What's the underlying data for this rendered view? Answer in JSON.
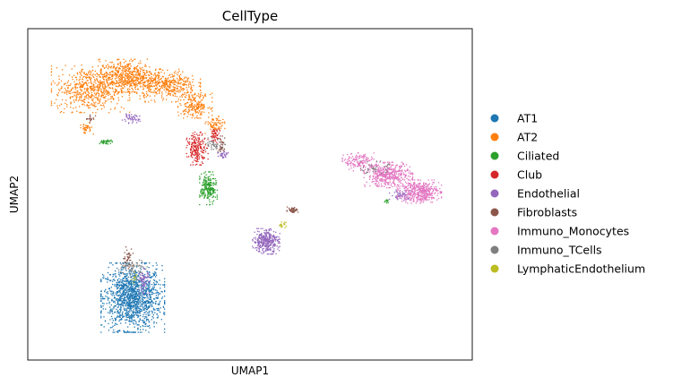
{
  "chart_data": {
    "type": "scatter",
    "title": "CellType",
    "xlabel": "UMAP1",
    "ylabel": "UMAP2",
    "grid": false,
    "ticks": false,
    "legend_position": "right",
    "xlim": [
      0,
      100
    ],
    "ylim": [
      0,
      100
    ],
    "series": [
      {
        "name": "AT1",
        "color": "#1f77b4",
        "clusters": [
          {
            "cx": 23.5,
            "cy": 19,
            "rx": 6.5,
            "ry": 9.5,
            "n": 1400
          }
        ]
      },
      {
        "name": "AT2",
        "color": "#ff7f0e",
        "clusters": [
          {
            "cx": 14,
            "cy": 82,
            "rx": 8,
            "ry": 6.5,
            "n": 600
          },
          {
            "cx": 22,
            "cy": 86,
            "rx": 6,
            "ry": 4.5,
            "n": 500
          },
          {
            "cx": 31,
            "cy": 83,
            "rx": 7,
            "ry": 4.5,
            "n": 450
          },
          {
            "cx": 37.5,
            "cy": 77,
            "rx": 3.5,
            "ry": 3.5,
            "n": 200
          },
          {
            "cx": 42,
            "cy": 71,
            "rx": 2,
            "ry": 2.5,
            "n": 80
          },
          {
            "cx": 13,
            "cy": 70,
            "rx": 1.5,
            "ry": 1.5,
            "n": 40
          }
        ]
      },
      {
        "name": "Ciliated",
        "color": "#2ca02c",
        "clusters": [
          {
            "cx": 40.5,
            "cy": 52,
            "rx": 1.8,
            "ry": 4.5,
            "n": 220
          },
          {
            "cx": 17.5,
            "cy": 66,
            "rx": 1.5,
            "ry": 0.6,
            "n": 40
          },
          {
            "cx": 80.5,
            "cy": 48,
            "rx": 0.5,
            "ry": 0.7,
            "n": 10
          }
        ]
      },
      {
        "name": "Club",
        "color": "#d62728",
        "clusters": [
          {
            "cx": 38,
            "cy": 64,
            "rx": 2.2,
            "ry": 4.5,
            "n": 200
          },
          {
            "cx": 42,
            "cy": 68,
            "rx": 1,
            "ry": 2,
            "n": 50
          }
        ]
      },
      {
        "name": "Endothelial",
        "color": "#9467bd",
        "clusters": [
          {
            "cx": 53.5,
            "cy": 36,
            "rx": 2.8,
            "ry": 3.5,
            "n": 350
          },
          {
            "cx": 23,
            "cy": 73,
            "rx": 2,
            "ry": 1.3,
            "n": 50
          },
          {
            "cx": 26,
            "cy": 24,
            "rx": 1.2,
            "ry": 3.5,
            "n": 70
          },
          {
            "cx": 84,
            "cy": 50,
            "rx": 2.5,
            "ry": 1.5,
            "n": 60
          },
          {
            "cx": 44,
            "cy": 62,
            "rx": 1.5,
            "ry": 1.5,
            "n": 30
          }
        ]
      },
      {
        "name": "Fibroblasts",
        "color": "#8c564b",
        "clusters": [
          {
            "cx": 59.5,
            "cy": 45.5,
            "rx": 1.2,
            "ry": 0.8,
            "n": 50
          },
          {
            "cx": 22.5,
            "cy": 31,
            "rx": 1,
            "ry": 3,
            "n": 40
          },
          {
            "cx": 43.5,
            "cy": 65,
            "rx": 1,
            "ry": 2.5,
            "n": 40
          },
          {
            "cx": 14,
            "cy": 73,
            "rx": 1,
            "ry": 1,
            "n": 20
          }
        ]
      },
      {
        "name": "Immuno_Monocytes",
        "color": "#e377c2",
        "clusters": [
          {
            "cx": 74.5,
            "cy": 60,
            "rx": 3.5,
            "ry": 2.5,
            "n": 150
          },
          {
            "cx": 81,
            "cy": 56,
            "rx": 5,
            "ry": 3.5,
            "n": 450
          },
          {
            "cx": 88,
            "cy": 51,
            "rx": 4.5,
            "ry": 3.2,
            "n": 450
          }
        ]
      },
      {
        "name": "Immuno_TCells",
        "color": "#7f7f7f",
        "clusters": [
          {
            "cx": 23.5,
            "cy": 28,
            "rx": 3,
            "ry": 2.5,
            "n": 60
          },
          {
            "cx": 42,
            "cy": 65,
            "rx": 2,
            "ry": 2,
            "n": 40
          },
          {
            "cx": 78,
            "cy": 58,
            "rx": 3,
            "ry": 2,
            "n": 40
          }
        ]
      },
      {
        "name": "LymphaticEndothelium",
        "color": "#bcbd22",
        "clusters": [
          {
            "cx": 57,
            "cy": 41,
            "rx": 1,
            "ry": 0.8,
            "n": 20
          },
          {
            "cx": 24,
            "cy": 25,
            "rx": 0.8,
            "ry": 1.5,
            "n": 10
          }
        ]
      }
    ]
  }
}
